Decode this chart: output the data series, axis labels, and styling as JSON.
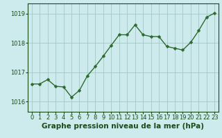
{
  "x": [
    0,
    1,
    2,
    3,
    4,
    5,
    6,
    7,
    8,
    9,
    10,
    11,
    12,
    13,
    14,
    15,
    16,
    17,
    18,
    19,
    20,
    21,
    22,
    23
  ],
  "y": [
    1016.6,
    1016.6,
    1016.75,
    1016.52,
    1016.5,
    1016.15,
    1016.38,
    1016.88,
    1017.2,
    1017.55,
    1017.92,
    1018.28,
    1018.28,
    1018.62,
    1018.28,
    1018.22,
    1018.22,
    1017.88,
    1017.82,
    1017.76,
    1018.02,
    1018.42,
    1018.88,
    1019.02
  ],
  "line_color": "#2d6a2d",
  "marker": "D",
  "marker_size": 2.5,
  "bg_color": "#cdeaec",
  "plot_bg_color": "#cdeaec",
  "grid_color": "#aacccc",
  "xlabel": "Graphe pression niveau de la mer (hPa)",
  "xlabel_color": "#1a4a1a",
  "xlabel_fontsize": 7.5,
  "tick_color": "#1a4a1a",
  "tick_fontsize": 6.0,
  "ylim": [
    1015.65,
    1019.35
  ],
  "yticks": [
    1016,
    1017,
    1018,
    1019
  ],
  "xlim": [
    -0.5,
    23.5
  ],
  "xticks": [
    0,
    1,
    2,
    3,
    4,
    5,
    6,
    7,
    8,
    9,
    10,
    11,
    12,
    13,
    14,
    15,
    16,
    17,
    18,
    19,
    20,
    21,
    22,
    23
  ]
}
